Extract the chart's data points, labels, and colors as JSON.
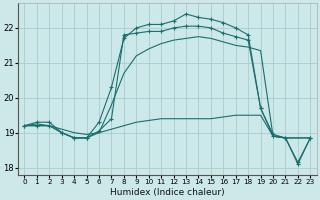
{
  "xlabel": "Humidex (Indice chaleur)",
  "bg_color": "#cce8e8",
  "grid_color": "#aacccc",
  "line_color": "#1a6e6e",
  "xlim": [
    -0.5,
    23.5
  ],
  "ylim": [
    17.8,
    22.7
  ],
  "xticks": [
    0,
    1,
    2,
    3,
    4,
    5,
    6,
    7,
    8,
    9,
    10,
    11,
    12,
    13,
    14,
    15,
    16,
    17,
    18,
    19,
    20,
    21,
    22,
    23
  ],
  "yticks": [
    18,
    19,
    20,
    21,
    22
  ],
  "curves": [
    {
      "x": [
        0,
        1,
        2,
        3,
        4,
        5,
        6,
        7,
        8,
        9,
        10,
        11,
        12,
        13,
        14,
        15,
        16,
        17,
        18,
        19,
        20,
        21,
        22,
        23
      ],
      "y": [
        19.2,
        19.3,
        19.3,
        19.0,
        18.85,
        18.85,
        19.3,
        20.3,
        21.7,
        22.0,
        22.1,
        22.1,
        22.2,
        22.4,
        22.3,
        22.25,
        22.15,
        22.0,
        21.8,
        19.7,
        18.95,
        18.85,
        18.1,
        18.85
      ],
      "marker": "+"
    },
    {
      "x": [
        0,
        1,
        2,
        3,
        4,
        5,
        6,
        7,
        8,
        9,
        10,
        11,
        12,
        13,
        14,
        15,
        16,
        17,
        18,
        19,
        20,
        21,
        22,
        23
      ],
      "y": [
        19.2,
        19.25,
        19.2,
        19.1,
        19.0,
        18.95,
        19.0,
        19.1,
        19.2,
        19.3,
        19.35,
        19.4,
        19.4,
        19.4,
        19.4,
        19.4,
        19.45,
        19.5,
        19.5,
        19.5,
        18.9,
        18.85,
        18.85,
        18.85
      ],
      "marker": null
    },
    {
      "x": [
        0,
        1,
        2,
        3,
        4,
        5,
        6,
        7,
        8,
        9,
        10,
        11,
        12,
        13,
        14,
        15,
        16,
        17,
        18,
        19,
        20,
        21,
        22,
        23
      ],
      "y": [
        19.2,
        19.2,
        19.2,
        19.0,
        18.85,
        18.85,
        19.0,
        19.8,
        20.7,
        21.2,
        21.4,
        21.55,
        21.65,
        21.7,
        21.75,
        21.7,
        21.6,
        21.5,
        21.45,
        21.35,
        18.9,
        18.85,
        18.85,
        18.85
      ],
      "marker": null
    },
    {
      "x": [
        0,
        1,
        2,
        3,
        4,
        5,
        6,
        7,
        8,
        9,
        10,
        11,
        12,
        13,
        14,
        15,
        16,
        17,
        18,
        19,
        20,
        21,
        22,
        23
      ],
      "y": [
        19.2,
        19.2,
        19.2,
        19.0,
        18.85,
        18.85,
        19.05,
        19.4,
        21.8,
        21.85,
        21.9,
        21.9,
        22.0,
        22.05,
        22.05,
        22.0,
        21.85,
        21.75,
        21.65,
        19.7,
        18.9,
        18.85,
        18.15,
        18.85
      ],
      "marker": "+"
    }
  ]
}
